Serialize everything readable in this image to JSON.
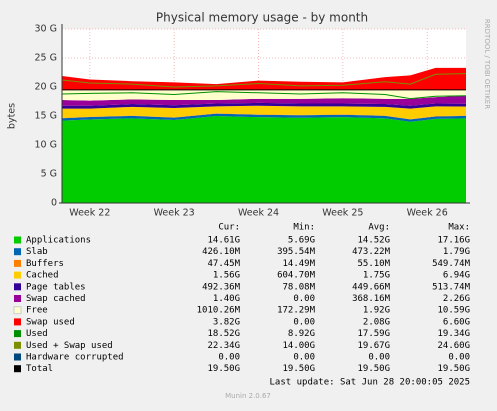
{
  "chart_data": {
    "type": "area",
    "title": "Physical memory usage - by month",
    "y_label": "bytes",
    "side_text": "RRDTOOL / TOBI OETIKER",
    "x": [
      21.67,
      22,
      22.5,
      23,
      23.5,
      24,
      24.5,
      25,
      25.5,
      25.8,
      26.1,
      26.46
    ],
    "xlim": [
      21.67,
      26.46
    ],
    "xticks": [
      {
        "value": 22,
        "label": "Week 22"
      },
      {
        "value": 23,
        "label": "Week 23"
      },
      {
        "value": 24,
        "label": "Week 24"
      },
      {
        "value": 25,
        "label": "Week 25"
      },
      {
        "value": 26,
        "label": "Week 26"
      }
    ],
    "ylim": [
      0,
      30
    ],
    "yticks": [
      0,
      {
        "value": 5,
        "label": "5 G"
      },
      {
        "value": 10,
        "label": "10 G"
      },
      {
        "value": 15,
        "label": "15 G"
      },
      {
        "value": 20,
        "label": "20 G"
      },
      {
        "value": 25,
        "label": "25 G"
      },
      {
        "value": 30,
        "label": "30 G"
      }
    ],
    "grid": true,
    "stat_headers": [
      "Cur:",
      "Min:",
      "Avg:",
      "Max:"
    ],
    "series": [
      {
        "name": "Applications",
        "color": "#00cc00",
        "draw": "area",
        "values": [
          14.2,
          14.4,
          14.6,
          14.3,
          15.0,
          14.8,
          14.7,
          14.8,
          14.6,
          14.0,
          14.5,
          14.6
        ],
        "stats": [
          "14.61G",
          "5.69G",
          "14.52G",
          "17.16G"
        ]
      },
      {
        "name": "Slab",
        "color": "#0066b3",
        "draw": "area",
        "values": [
          0.42,
          0.42,
          0.42,
          0.42,
          0.42,
          0.42,
          0.42,
          0.42,
          0.42,
          0.42,
          0.42,
          0.42
        ],
        "stats": [
          "426.10M",
          "395.54M",
          "473.22M",
          "1.79G"
        ]
      },
      {
        "name": "Buffers",
        "color": "#ff8000",
        "draw": "area",
        "values": [
          0.05,
          0.05,
          0.05,
          0.05,
          0.05,
          0.05,
          0.05,
          0.05,
          0.05,
          0.05,
          0.05,
          0.05
        ],
        "stats": [
          "47.45M",
          "14.49M",
          "55.10M",
          "549.74M"
        ]
      },
      {
        "name": "Cached",
        "color": "#ffcc00",
        "draw": "area",
        "values": [
          1.6,
          1.4,
          1.5,
          1.6,
          1.2,
          1.5,
          1.5,
          1.4,
          1.5,
          1.8,
          1.7,
          1.56
        ],
        "stats": [
          "1.56G",
          "604.70M",
          "1.75G",
          "6.94G"
        ]
      },
      {
        "name": "Page tables",
        "color": "#330099",
        "draw": "area",
        "values": [
          0.49,
          0.49,
          0.49,
          0.49,
          0.49,
          0.49,
          0.49,
          0.49,
          0.49,
          0.49,
          0.49,
          0.49
        ],
        "stats": [
          "492.36M",
          "78.08M",
          "449.66M",
          "513.74M"
        ]
      },
      {
        "name": "Swap cached",
        "color": "#990099",
        "draw": "area",
        "values": [
          1.0,
          0.9,
          0.8,
          0.9,
          0.6,
          0.7,
          0.8,
          0.9,
          0.9,
          1.2,
          1.1,
          1.4
        ],
        "stats": [
          "1.40G",
          "0.00",
          "368.16M",
          "2.26G"
        ]
      },
      {
        "name": "Free",
        "color": "#ffffcc",
        "draw": "area",
        "values": [
          1.74,
          1.84,
          1.64,
          1.74,
          1.74,
          1.54,
          1.54,
          1.44,
          1.54,
          1.54,
          1.24,
          0.98
        ],
        "stats": [
          "1010.26M",
          "172.29M",
          "1.92G",
          "10.59G"
        ]
      },
      {
        "name": "Swap used",
        "color": "#ff0000",
        "draw": "area",
        "values": [
          2.4,
          1.8,
          1.5,
          1.3,
          1.0,
          1.6,
          1.4,
          1.3,
          2.2,
          2.5,
          3.8,
          3.8
        ],
        "stats": [
          "3.82G",
          "0.00",
          "2.08G",
          "6.60G"
        ]
      },
      {
        "name": "Used",
        "color": "#008f00",
        "draw": "line",
        "values": [
          18.8,
          18.9,
          19.0,
          18.7,
          19.2,
          19.0,
          18.8,
          19.0,
          18.7,
          18.0,
          18.4,
          18.5
        ],
        "stats": [
          "18.52G",
          "8.92G",
          "17.59G",
          "19.34G"
        ]
      },
      {
        "name": "Used + Swap used",
        "color": "#7d8f00",
        "draw": "line",
        "values": [
          21.2,
          20.7,
          20.5,
          20.0,
          20.2,
          20.6,
          20.2,
          20.3,
          20.9,
          20.5,
          22.2,
          22.3
        ],
        "stats": [
          "22.34G",
          "14.00G",
          "19.67G",
          "24.60G"
        ]
      },
      {
        "name": "Hardware corrupted",
        "color": "#00487d",
        "draw": "line",
        "values": [
          0,
          0,
          0,
          0,
          0,
          0,
          0,
          0,
          0,
          0,
          0,
          0
        ],
        "stats": [
          "0.00",
          "0.00",
          "0.00",
          "0.00"
        ]
      },
      {
        "name": "Total",
        "color": "#000000",
        "draw": "line",
        "values": [
          19.5,
          19.5,
          19.5,
          19.5,
          19.5,
          19.5,
          19.5,
          19.5,
          19.5,
          19.5,
          19.5,
          19.5
        ],
        "stats": [
          "19.50G",
          "19.50G",
          "19.50G",
          "19.50G"
        ]
      }
    ],
    "last_update": "Last update: Sat Jun 28 20:00:05 2025",
    "footer": "Munin 2.0.67"
  }
}
